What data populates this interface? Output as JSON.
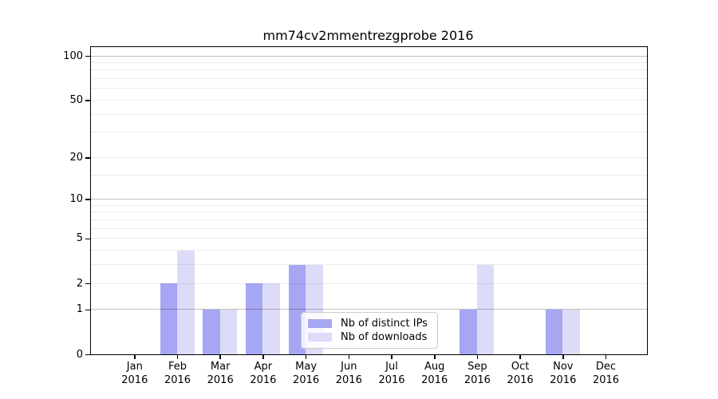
{
  "title": "mm74cv2mmentrezgprobe 2016",
  "chart_data": {
    "type": "bar",
    "title": "mm74cv2mmentrezgprobe 2016",
    "categories": [
      "Jan",
      "Feb",
      "Mar",
      "Apr",
      "May",
      "Jun",
      "Jul",
      "Aug",
      "Sep",
      "Oct",
      "Nov",
      "Dec"
    ],
    "year": "2016",
    "series": [
      {
        "name": "Nb of distinct IPs",
        "color": "#a6a6f2",
        "values": [
          0,
          2,
          1,
          2,
          3,
          0,
          0,
          0,
          1,
          0,
          1,
          0
        ]
      },
      {
        "name": "Nb of downloads",
        "color": "#dcdcf8",
        "values": [
          0,
          4,
          1,
          2,
          3,
          0,
          0,
          0,
          3,
          0,
          1,
          0
        ]
      }
    ],
    "y_scale": "log1p",
    "y_ticks": [
      0,
      1,
      2,
      5,
      10,
      20,
      50,
      100
    ],
    "y_major_gridlines": [
      1,
      10,
      100
    ],
    "y_minor_gridlines": [
      2,
      3,
      4,
      5,
      6,
      7,
      8,
      9,
      15,
      20,
      30,
      40,
      50,
      60,
      70,
      80,
      90
    ],
    "ylim": [
      0,
      115
    ],
    "grid_color_major": "rgba(0,0,0,0.25)",
    "grid_color_minor": "rgba(0,0,0,0.08)",
    "legend_position": "lower center",
    "axis_color": "#000000"
  },
  "legend": {
    "items": [
      {
        "label": "Nb of distinct IPs"
      },
      {
        "label": "Nb of downloads"
      }
    ]
  }
}
